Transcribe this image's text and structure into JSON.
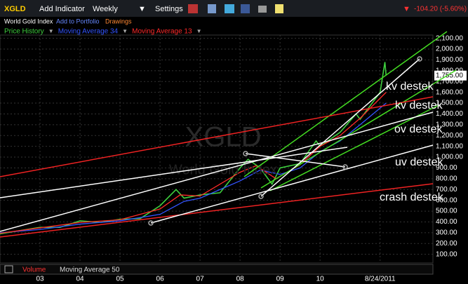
{
  "toolbar": {
    "symbol": "XGLD",
    "add_indicator": "Add Indicator",
    "interval": "Weekly",
    "settings": "Settings",
    "change": "-104.20 (-5.60%)"
  },
  "subbar": {
    "name": "World Gold Index",
    "add_to_portfolio": "Add to Portfolio",
    "drawings": "Drawings"
  },
  "watermark": {
    "symbol": "XGLD",
    "name": "World Gold Index"
  },
  "lower_panel": {
    "volume": "Volume",
    "moving_average": "Moving Average 50"
  },
  "annotations": [
    "kv destek",
    "kv destek",
    "ov destek",
    "uv destek",
    "crash destek"
  ],
  "chart_data": {
    "type": "line",
    "last_price": {
      "value": 1755,
      "label": "1,755.00"
    },
    "xlim": [
      2002.0,
      2012.82
    ],
    "xticks": [
      {
        "value": 2003,
        "label": "03"
      },
      {
        "value": 2004,
        "label": "04"
      },
      {
        "value": 2005,
        "label": "05"
      },
      {
        "value": 2006,
        "label": "06"
      },
      {
        "value": 2007,
        "label": "07"
      },
      {
        "value": 2008,
        "label": "08"
      },
      {
        "value": 2009,
        "label": "09"
      },
      {
        "value": 2010,
        "label": "10"
      },
      {
        "value": 2011.5,
        "label": "8/24/2011"
      }
    ],
    "ylim": [
      20,
      2130
    ],
    "yticks": [
      {
        "value": 100,
        "label": "100.00"
      },
      {
        "value": 200,
        "label": "200.00"
      },
      {
        "value": 300,
        "label": "300.00"
      },
      {
        "value": 400,
        "label": "400.00"
      },
      {
        "value": 500,
        "label": "500.00"
      },
      {
        "value": 600,
        "label": "600.00"
      },
      {
        "value": 700,
        "label": "700.00"
      },
      {
        "value": 800,
        "label": "800.00"
      },
      {
        "value": 900,
        "label": "900.00"
      },
      {
        "value": 1000,
        "label": "1,000.00"
      },
      {
        "value": 1100,
        "label": "1,100.00"
      },
      {
        "value": 1200,
        "label": "1,200.00"
      },
      {
        "value": 1300,
        "label": "1,300.00"
      },
      {
        "value": 1400,
        "label": "1,400.00"
      },
      {
        "value": 1500,
        "label": "1,500.00"
      },
      {
        "value": 1600,
        "label": "1,600.00"
      },
      {
        "value": 1700,
        "label": "1,700.00"
      },
      {
        "value": 1800,
        "label": "1,800.00"
      },
      {
        "value": 1900,
        "label": "1,900.00"
      },
      {
        "value": 2000,
        "label": "2,000.00"
      },
      {
        "value": 2100,
        "label": "2,100.00"
      }
    ],
    "grid": true,
    "series": [
      {
        "name": "Price History",
        "color": "#3ecf3e",
        "x": [
          2002.0,
          2002.5,
          2003.0,
          2003.5,
          2004.0,
          2004.5,
          2005.0,
          2005.5,
          2006.0,
          2006.4,
          2006.6,
          2007.0,
          2007.5,
          2008.0,
          2008.2,
          2008.5,
          2008.8,
          2009.0,
          2009.5,
          2009.9,
          2010.0,
          2010.5,
          2010.9,
          2011.0,
          2011.3,
          2011.5,
          2011.62,
          2011.65
        ],
        "values": [
          290,
          320,
          350,
          350,
          410,
          395,
          425,
          430,
          550,
          700,
          620,
          650,
          670,
          900,
          980,
          900,
          750,
          900,
          940,
          1150,
          1100,
          1230,
          1400,
          1350,
          1500,
          1600,
          1880,
          1755
        ]
      },
      {
        "name": "Moving Average 34",
        "color": "#3355ff",
        "x": [
          2002.0,
          2003.0,
          2004.0,
          2005.0,
          2006.0,
          2006.6,
          2007.0,
          2008.0,
          2008.5,
          2009.0,
          2009.5,
          2010.0,
          2010.5,
          2011.0,
          2011.65
        ],
        "values": [
          300,
          330,
          380,
          410,
          470,
          590,
          620,
          780,
          880,
          840,
          900,
          1050,
          1150,
          1300,
          1500
        ]
      },
      {
        "name": "Moving Average 13",
        "color": "#ff2a2a",
        "x": [
          2002.0,
          2003.0,
          2004.0,
          2005.0,
          2006.0,
          2006.5,
          2007.0,
          2008.0,
          2008.4,
          2008.9,
          2009.5,
          2010.0,
          2010.5,
          2011.0,
          2011.65
        ],
        "values": [
          295,
          345,
          395,
          420,
          520,
          650,
          640,
          860,
          920,
          800,
          930,
          1100,
          1200,
          1360,
          1600
        ]
      }
    ]
  }
}
